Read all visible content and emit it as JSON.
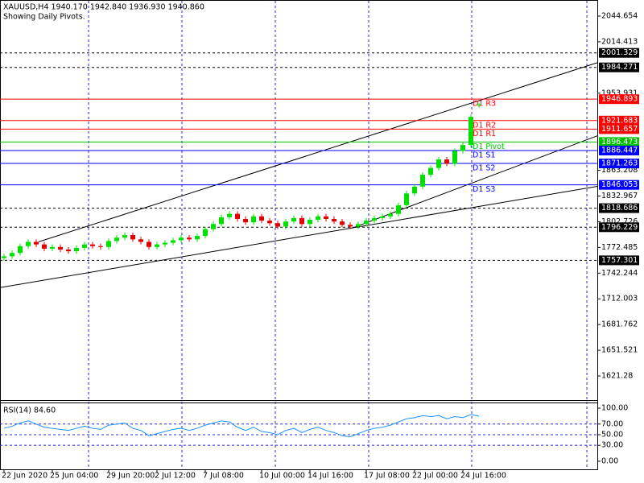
{
  "chart_data": [
    {
      "type": "candlestick",
      "title": "XAUUSD,H4  1940.170 1942.840 1936.930 1940.860",
      "subtitle": "Showing Daily Pivots.",
      "categories": [
        "22 Jun 2020",
        null,
        null,
        null,
        null,
        null,
        "25 Jun 04:00",
        null,
        null,
        null,
        null,
        null,
        null,
        "29 Jun 20:00",
        null,
        null,
        null,
        null,
        null,
        "2 Jul 12:00",
        null,
        null,
        null,
        null,
        null,
        "7 Jul 08:00",
        null,
        null,
        null,
        null,
        null,
        null,
        "10 Jul 00:00",
        null,
        null,
        null,
        null,
        null,
        "14 Jul 16:00",
        null,
        null,
        null,
        null,
        null,
        null,
        "17 Jul 08:00",
        null,
        null,
        null,
        null,
        null,
        "22 Jul 00:00",
        null,
        null,
        null,
        null,
        null,
        "24 Jul 16:00",
        null,
        null
      ],
      "open": [
        1760,
        1762,
        1766,
        1774,
        1779,
        1776,
        1771,
        1773,
        1770,
        1768,
        1772,
        1776,
        1774,
        1773,
        1780,
        1784,
        1787,
        1782,
        1779,
        1773,
        1776,
        1778,
        1781,
        1784,
        1782,
        1786,
        1794,
        1800,
        1808,
        1812,
        1806,
        1802,
        1809,
        1804,
        1801,
        1797,
        1803,
        1807,
        1800,
        1805,
        1809,
        1806,
        1803,
        1799,
        1797,
        1800,
        1804,
        1807,
        1809,
        1812,
        1822,
        1836,
        1844,
        1858,
        1866,
        1876,
        1871,
        1886,
        1893,
        1940.17
      ],
      "high": [
        1765,
        1769,
        1777,
        1782,
        1782,
        1779,
        1776,
        1776,
        1773,
        1775,
        1779,
        1779,
        1777,
        1783,
        1787,
        1790,
        1790,
        1785,
        1782,
        1779,
        1781,
        1784,
        1787,
        1787,
        1789,
        1797,
        1803,
        1811,
        1815,
        1815,
        1809,
        1812,
        1812,
        1807,
        1804,
        1806,
        1810,
        1810,
        1808,
        1812,
        1812,
        1809,
        1806,
        1802,
        1803,
        1807,
        1810,
        1812,
        1815,
        1825,
        1839,
        1847,
        1861,
        1869,
        1879,
        1879,
        1889,
        1896,
        1929,
        1942.84
      ],
      "low": [
        1757,
        1759,
        1763,
        1771,
        1773,
        1768,
        1768,
        1767,
        1765,
        1765,
        1769,
        1771,
        1770,
        1770,
        1777,
        1781,
        1779,
        1776,
        1770,
        1770,
        1773,
        1775,
        1778,
        1779,
        1779,
        1783,
        1791,
        1797,
        1805,
        1803,
        1799,
        1799,
        1801,
        1798,
        1794,
        1794,
        1800,
        1797,
        1797,
        1802,
        1803,
        1800,
        1796,
        1794,
        1794,
        1797,
        1801,
        1804,
        1806,
        1809,
        1819,
        1833,
        1841,
        1855,
        1863,
        1868,
        1868,
        1883,
        1890,
        1936.93
      ],
      "close": [
        1762,
        1766,
        1774,
        1779,
        1776,
        1771,
        1773,
        1770,
        1768,
        1772,
        1776,
        1774,
        1773,
        1780,
        1784,
        1787,
        1782,
        1779,
        1773,
        1776,
        1778,
        1781,
        1784,
        1782,
        1786,
        1794,
        1800,
        1808,
        1812,
        1806,
        1802,
        1809,
        1804,
        1801,
        1797,
        1803,
        1807,
        1800,
        1805,
        1809,
        1806,
        1803,
        1799,
        1797,
        1800,
        1804,
        1807,
        1809,
        1812,
        1822,
        1836,
        1844,
        1858,
        1866,
        1876,
        1871,
        1886,
        1893,
        1926,
        1940.86
      ],
      "up_color": "#00e000",
      "down_color": "#e00000",
      "xlim": [
        -0.5,
        73.7
      ],
      "ylim": [
        1592.9,
        2062.6
      ],
      "yticks": [
        2044.654,
        2014.413,
        1953.931,
        1863.208,
        1832.967,
        1802.726,
        1772.485,
        1742.244,
        1712.003,
        1681.762,
        1651.521,
        1621.28
      ],
      "levels": [
        {
          "value": 2001.329,
          "color": "#000000",
          "dashed": true
        },
        {
          "value": 1984.271,
          "color": "#000000",
          "dashed": true
        },
        {
          "value": 1946.893,
          "name": "D1 R3",
          "color": "#ff0000",
          "dashed": false
        },
        {
          "value": 1921.683,
          "name": "D1 R2",
          "color": "#ff0000",
          "dashed": false
        },
        {
          "value": 1911.657,
          "name": "D1 R1",
          "color": "#ff0000",
          "dashed": false
        },
        {
          "value": 1896.473,
          "name": "D1 Pivot",
          "color": "#00c000",
          "dashed": false
        },
        {
          "value": 1886.447,
          "name": "D1 S1",
          "color": "#0000ff",
          "dashed": false
        },
        {
          "value": 1871.263,
          "name": "D1 S2",
          "color": "#0000ff",
          "dashed": false
        },
        {
          "value": 1846.053,
          "name": "D1 S3",
          "color": "#0000ff",
          "dashed": false
        },
        {
          "value": 1818.686,
          "color": "#000000",
          "dashed": true
        },
        {
          "value": 1796.229,
          "color": "#000000",
          "dashed": true
        },
        {
          "value": 1757.301,
          "color": "#000000",
          "dashed": true
        }
      ],
      "trendlines": [
        {
          "x": [
            4.3,
            73.7
          ],
          "y": [
            1779.1,
            1989.8
          ]
        },
        {
          "x": [
            43.5,
            73.7
          ],
          "y": [
            1796.1,
            1903.8
          ]
        },
        {
          "x": [
            -0.5,
            73.7
          ],
          "y": [
            1725.2,
            1844.3
          ]
        }
      ]
    },
    {
      "type": "line",
      "title": "RSI(14) 84.60",
      "color": "#1e90ff",
      "values": [
        62,
        66,
        72,
        76,
        70,
        64,
        62,
        60,
        58,
        62,
        66,
        62,
        60,
        68,
        70,
        72,
        62,
        58,
        48,
        52,
        56,
        60,
        62,
        58,
        62,
        68,
        72,
        76,
        74,
        64,
        58,
        64,
        56,
        54,
        50,
        58,
        62,
        54,
        60,
        64,
        58,
        54,
        48,
        46,
        52,
        58,
        62,
        64,
        68,
        74,
        80,
        82,
        86,
        84,
        86,
        80,
        84,
        82,
        88,
        84.6
      ],
      "ylim": [
        -15.2,
        110.6
      ],
      "yticks": [
        {
          "value": 100,
          "label": "100.00"
        },
        {
          "value": 70,
          "label": "70.00"
        },
        {
          "value": 50,
          "label": "50.00"
        },
        {
          "value": 30,
          "label": "30.00"
        },
        {
          "value": 0,
          "label": "0.00"
        }
      ]
    }
  ]
}
